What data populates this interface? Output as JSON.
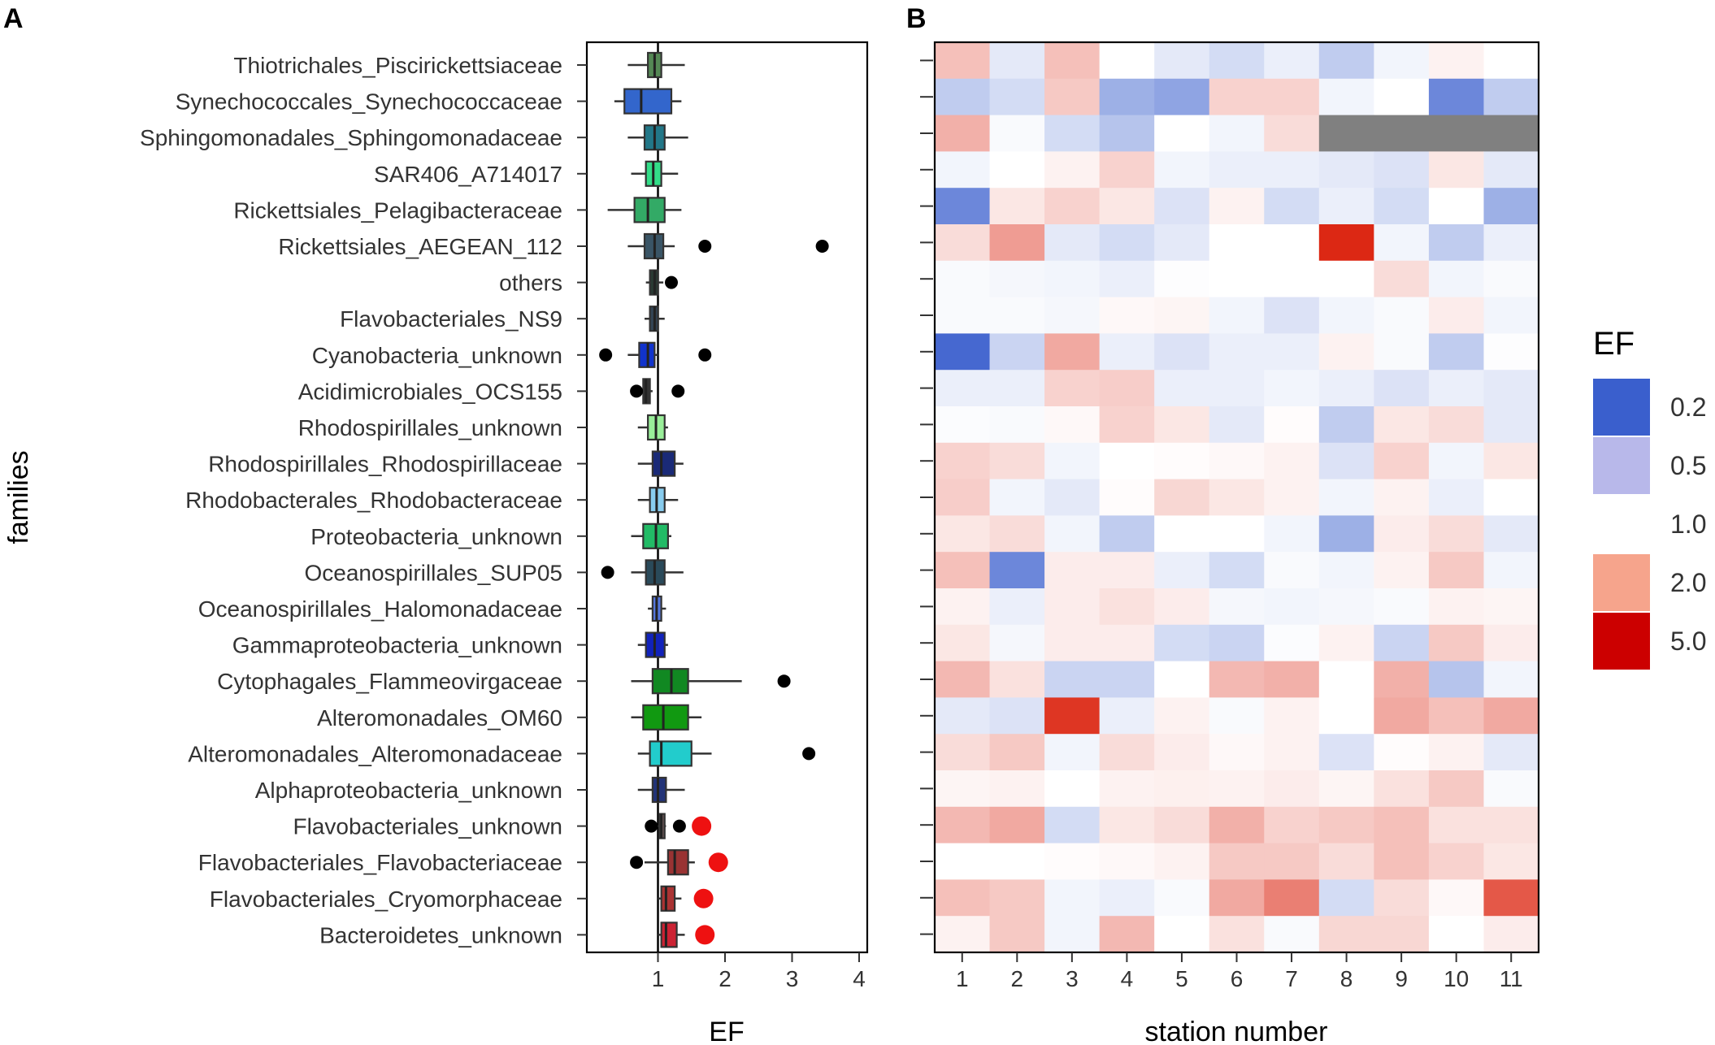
{
  "chart_data": [
    {
      "type": "box",
      "panel": "A",
      "xlabel": "EF",
      "ylabel": "families",
      "xlim": [
        0,
        4.2
      ],
      "xticks": [
        1,
        2,
        3,
        4
      ],
      "reference_line": 1,
      "families": [
        {
          "name": "Thiotrichales_Piscirickettsiaceae",
          "color": "#558855",
          "whisker_low": 0.55,
          "q1": 0.85,
          "median": 0.95,
          "q3": 1.05,
          "whisker_high": 1.4,
          "outliers": [],
          "red_points": []
        },
        {
          "name": "Synechococcales_Synechococcaceae",
          "color": "#3366cc",
          "whisker_low": 0.35,
          "q1": 0.5,
          "median": 0.75,
          "q3": 1.2,
          "whisker_high": 1.35,
          "outliers": [],
          "red_points": []
        },
        {
          "name": "Sphingomonadales_Sphingomonadaceae",
          "color": "#227788",
          "whisker_low": 0.55,
          "q1": 0.8,
          "median": 0.95,
          "q3": 1.1,
          "whisker_high": 1.45,
          "outliers": [],
          "red_points": []
        },
        {
          "name": "SAR406_A714017",
          "color": "#33dd88",
          "whisker_low": 0.6,
          "q1": 0.82,
          "median": 0.93,
          "q3": 1.05,
          "whisker_high": 1.3,
          "outliers": [],
          "red_points": []
        },
        {
          "name": "Rickettsiales_Pelagibacteraceae",
          "color": "#33aa66",
          "whisker_low": 0.25,
          "q1": 0.65,
          "median": 0.85,
          "q3": 1.1,
          "whisker_high": 1.35,
          "outliers": [],
          "red_points": []
        },
        {
          "name": "Rickettsiales_AEGEAN_112",
          "color": "#3a5566",
          "whisker_low": 0.55,
          "q1": 0.8,
          "median": 0.95,
          "q3": 1.08,
          "whisker_high": 1.25,
          "outliers": [
            1.7,
            3.45
          ],
          "red_points": []
        },
        {
          "name": "others",
          "color": "#2a3a33",
          "whisker_low": 0.82,
          "q1": 0.88,
          "median": 0.95,
          "q3": 1.0,
          "whisker_high": 1.08,
          "outliers": [
            1.2
          ],
          "red_points": []
        },
        {
          "name": "Flavobacteriales_NS9",
          "color": "#334455",
          "whisker_low": 0.8,
          "q1": 0.88,
          "median": 0.95,
          "q3": 1.0,
          "whisker_high": 1.1,
          "outliers": [],
          "red_points": []
        },
        {
          "name": "Cyanobacteria_unknown",
          "color": "#1133cc",
          "whisker_low": 0.55,
          "q1": 0.72,
          "median": 0.85,
          "q3": 0.95,
          "whisker_high": 1.0,
          "outliers": [
            0.22,
            1.7
          ],
          "red_points": []
        },
        {
          "name": "Acidimicrobiales_OCS155",
          "color": "#333333",
          "whisker_low": 0.7,
          "q1": 0.78,
          "median": 0.82,
          "q3": 0.88,
          "whisker_high": 0.92,
          "outliers": [
            0.68,
            1.3
          ],
          "red_points": []
        },
        {
          "name": "Rhodospirillales_unknown",
          "color": "#99ee99",
          "whisker_low": 0.7,
          "q1": 0.85,
          "median": 0.97,
          "q3": 1.1,
          "whisker_high": 1.15,
          "outliers": [],
          "red_points": []
        },
        {
          "name": "Rhodospirillales_Rhodospirillaceae",
          "color": "#1a2a77",
          "whisker_low": 0.7,
          "q1": 0.92,
          "median": 1.05,
          "q3": 1.25,
          "whisker_high": 1.38,
          "outliers": [],
          "red_points": []
        },
        {
          "name": "Rhodobacterales_Rhodobacteraceae",
          "color": "#88ccee",
          "whisker_low": 0.7,
          "q1": 0.88,
          "median": 0.98,
          "q3": 1.1,
          "whisker_high": 1.3,
          "outliers": [],
          "red_points": []
        },
        {
          "name": "Proteobacteria_unknown",
          "color": "#22bb66",
          "whisker_low": 0.6,
          "q1": 0.78,
          "median": 0.97,
          "q3": 1.15,
          "whisker_high": 1.2,
          "outliers": [],
          "red_points": []
        },
        {
          "name": "Oceanospirillales_SUP05",
          "color": "#2a4a5a",
          "whisker_low": 0.6,
          "q1": 0.82,
          "median": 0.95,
          "q3": 1.1,
          "whisker_high": 1.38,
          "outliers": [
            0.25
          ],
          "red_points": []
        },
        {
          "name": "Oceanospirillales_Halomonadaceae",
          "color": "#5577dd",
          "whisker_low": 0.85,
          "q1": 0.92,
          "median": 0.98,
          "q3": 1.05,
          "whisker_high": 1.12,
          "outliers": [],
          "red_points": []
        },
        {
          "name": "Gammaproteobacteria_unknown",
          "color": "#1122bb",
          "whisker_low": 0.7,
          "q1": 0.82,
          "median": 0.95,
          "q3": 1.1,
          "whisker_high": 1.15,
          "outliers": [],
          "red_points": []
        },
        {
          "name": "Cytophagales_Flammeovirgaceae",
          "color": "#118822",
          "whisker_low": 0.6,
          "q1": 0.92,
          "median": 1.2,
          "q3": 1.45,
          "whisker_high": 2.25,
          "outliers": [
            2.88
          ],
          "red_points": []
        },
        {
          "name": "Alteromonadales_OM60",
          "color": "#119911",
          "whisker_low": 0.6,
          "q1": 0.78,
          "median": 1.08,
          "q3": 1.45,
          "whisker_high": 1.65,
          "outliers": [],
          "red_points": []
        },
        {
          "name": "Alteromonadales_Alteromonadaceae",
          "color": "#22cccc",
          "whisker_low": 0.7,
          "q1": 0.88,
          "median": 1.05,
          "q3": 1.5,
          "whisker_high": 1.8,
          "outliers": [
            3.25
          ],
          "red_points": []
        },
        {
          "name": "Alphaproteobacteria_unknown",
          "color": "#223377",
          "whisker_low": 0.7,
          "q1": 0.92,
          "median": 1.0,
          "q3": 1.12,
          "whisker_high": 1.4,
          "outliers": [],
          "red_points": []
        },
        {
          "name": "Flavobacteriales_unknown",
          "color": "#665555",
          "whisker_low": 1.0,
          "q1": 1.02,
          "median": 1.05,
          "q3": 1.1,
          "whisker_high": 1.12,
          "outliers": [
            0.9,
            1.32
          ],
          "red_points": [
            1.65
          ]
        },
        {
          "name": "Flavobacteriales_Flavobacteriaceae",
          "color": "#993333",
          "whisker_low": 0.8,
          "q1": 1.15,
          "median": 1.25,
          "q3": 1.45,
          "whisker_high": 1.55,
          "outliers": [
            0.68
          ],
          "red_points": [
            1.9
          ]
        },
        {
          "name": "Flavobacteriales_Cryomorphaceae",
          "color": "#aa3333",
          "whisker_low": 1.0,
          "q1": 1.05,
          "median": 1.12,
          "q3": 1.25,
          "whisker_high": 1.35,
          "outliers": [],
          "red_points": [
            1.68
          ]
        },
        {
          "name": "Bacteroidetes_unknown",
          "color": "#cc2233",
          "whisker_low": 1.0,
          "q1": 1.05,
          "median": 1.12,
          "q3": 1.28,
          "whisker_high": 1.4,
          "outliers": [],
          "red_points": [
            1.7
          ]
        }
      ]
    },
    {
      "type": "heatmap",
      "panel": "B",
      "xlabel": "station number",
      "stations": [
        "1",
        "2",
        "3",
        "4",
        "5",
        "6",
        "7",
        "8",
        "9",
        "10",
        "11"
      ],
      "rows": [
        "Thiotrichales_Piscirickettsiaceae",
        "Synechococcales_Synechococcaceae",
        "Sphingomonadales_Sphingomonadaceae",
        "SAR406_A714017",
        "Rickettsiales_Pelagibacteraceae",
        "Rickettsiales_AEGEAN_112",
        "others",
        "Flavobacteriales_NS9",
        "Cyanobacteria_unknown",
        "Acidimicrobiales_OCS155",
        "Rhodospirillales_unknown",
        "Rhodospirillales_Rhodospirillaceae",
        "Rhodobacterales_Rhodobacteraceae",
        "Proteobacteria_unknown",
        "Oceanospirillales_SUP05",
        "Oceanospirillales_Halomonadaceae",
        "Gammaproteobacteria_unknown",
        "Cytophagales_Flammeovirgaceae",
        "Alteromonadales_OM60",
        "Alteromonadales_Alteromonadaceae",
        "Alphaproteobacteria_unknown",
        "Flavobacteriales_unknown",
        "Flavobacteriales_Flavobacteriaceae",
        "Flavobacteriales_Cryomorphaceae",
        "Bacteroidetes_unknown"
      ],
      "values": [
        [
          1.6,
          0.8,
          1.6,
          1.0,
          0.8,
          0.7,
          0.85,
          0.6,
          0.9,
          1.1,
          1.0
        ],
        [
          0.6,
          0.7,
          1.5,
          0.45,
          0.4,
          1.4,
          1.4,
          0.9,
          1.0,
          0.3,
          0.6
        ],
        [
          1.8,
          0.95,
          0.7,
          0.55,
          1.0,
          0.9,
          1.3,
          null,
          null,
          null,
          null
        ],
        [
          0.9,
          1.0,
          1.1,
          1.4,
          0.9,
          0.85,
          0.85,
          0.8,
          0.75,
          1.2,
          0.8
        ],
        [
          0.3,
          1.2,
          1.4,
          1.2,
          0.75,
          1.1,
          0.7,
          0.85,
          0.7,
          1.0,
          0.45
        ],
        [
          1.3,
          2.1,
          0.8,
          0.7,
          0.8,
          1.0,
          1.0,
          5.0,
          0.9,
          0.6,
          0.85
        ],
        [
          0.95,
          0.92,
          0.9,
          0.85,
          0.98,
          1.0,
          1.0,
          1.0,
          1.3,
          0.9,
          0.95
        ],
        [
          0.95,
          0.95,
          0.92,
          1.05,
          1.08,
          0.9,
          0.75,
          0.9,
          0.95,
          1.15,
          0.9
        ],
        [
          0.22,
          0.65,
          1.9,
          0.85,
          0.75,
          0.85,
          0.85,
          1.1,
          0.95,
          0.6,
          0.98
        ],
        [
          0.85,
          0.85,
          1.4,
          1.45,
          0.85,
          0.85,
          0.9,
          0.85,
          0.75,
          0.85,
          0.8
        ],
        [
          0.97,
          0.95,
          1.05,
          1.4,
          1.2,
          0.8,
          1.02,
          0.6,
          1.2,
          1.3,
          0.8
        ],
        [
          1.4,
          1.3,
          0.9,
          1.0,
          1.02,
          1.05,
          1.1,
          0.75,
          1.4,
          0.9,
          1.2
        ],
        [
          1.45,
          0.9,
          0.8,
          1.02,
          1.35,
          1.2,
          1.1,
          0.9,
          1.1,
          0.85,
          1.0
        ],
        [
          1.2,
          1.3,
          0.9,
          0.6,
          1.0,
          1.0,
          0.9,
          0.45,
          1.15,
          1.3,
          0.8
        ],
        [
          1.6,
          0.3,
          1.15,
          1.15,
          0.85,
          0.7,
          0.95,
          0.9,
          1.1,
          1.5,
          0.9
        ],
        [
          1.1,
          0.85,
          1.15,
          1.25,
          1.15,
          0.92,
          0.9,
          0.92,
          0.95,
          1.1,
          1.08
        ],
        [
          1.2,
          0.92,
          1.15,
          1.15,
          0.7,
          0.65,
          0.97,
          1.1,
          0.65,
          1.5,
          1.15
        ],
        [
          1.7,
          1.25,
          0.65,
          0.65,
          1.0,
          1.7,
          1.8,
          1.0,
          1.8,
          0.55,
          0.9
        ],
        [
          0.8,
          0.75,
          4.5,
          0.85,
          1.1,
          0.95,
          1.1,
          1.0,
          1.9,
          1.6,
          1.9
        ],
        [
          1.3,
          1.5,
          0.9,
          1.3,
          1.15,
          1.05,
          1.1,
          0.75,
          1.02,
          1.1,
          0.8
        ],
        [
          1.08,
          1.1,
          1.0,
          1.1,
          1.12,
          1.1,
          1.15,
          1.08,
          1.25,
          1.5,
          0.95
        ],
        [
          1.7,
          1.9,
          0.7,
          1.2,
          1.3,
          1.8,
          1.4,
          1.5,
          1.6,
          1.25,
          1.25
        ],
        [
          1.0,
          1.0,
          1.02,
          1.05,
          1.1,
          1.5,
          1.5,
          1.3,
          1.6,
          1.4,
          1.2
        ],
        [
          1.6,
          1.5,
          0.9,
          0.85,
          0.95,
          1.9,
          2.6,
          0.7,
          1.3,
          1.05,
          3.5
        ],
        [
          1.1,
          1.5,
          0.9,
          1.7,
          1.0,
          1.25,
          0.95,
          1.35,
          1.35,
          1.0,
          1.15
        ]
      ],
      "missing_color": "#808080",
      "legend": {
        "title": "EF",
        "entries": [
          {
            "label": "0.2",
            "color": "#3a5fcd"
          },
          {
            "label": "0.5",
            "color": "#b8b8ea"
          },
          {
            "label": "1.0",
            "color": "#ffffff"
          },
          {
            "label": "2.0",
            "color": "#f6a48c"
          },
          {
            "label": "5.0",
            "color": "#cc0000"
          }
        ]
      }
    }
  ],
  "panels": {
    "a_label": "A",
    "b_label": "B"
  }
}
